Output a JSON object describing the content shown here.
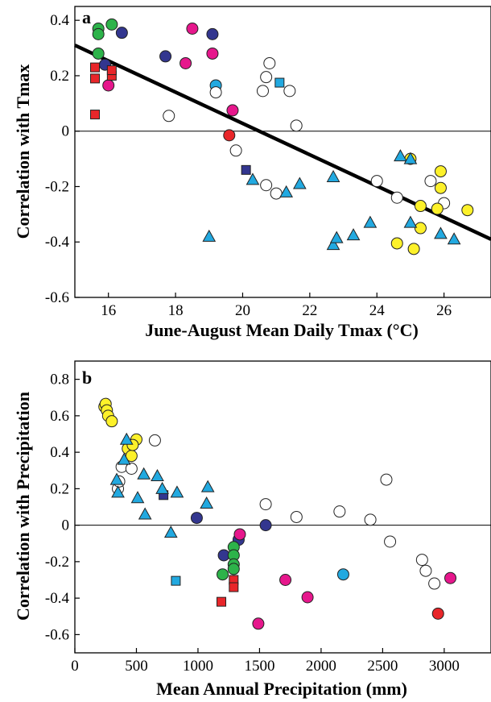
{
  "chart_data": [
    {
      "type": "scatter",
      "panel_label": "a",
      "xlabel": "June-August Mean Daily Tmax (°C)",
      "ylabel": "Correlation with Tmax",
      "xlim": [
        15,
        27.4
      ],
      "ylim": [
        -0.6,
        0.45
      ],
      "xticks": [
        16,
        18,
        20,
        22,
        24,
        26
      ],
      "yticks": [
        -0.6,
        -0.4,
        -0.2,
        0,
        0.2,
        0.4
      ],
      "zero_line": true,
      "grid": false,
      "regression_line": {
        "x": [
          15,
          27.4
        ],
        "y": [
          0.31,
          -0.39
        ]
      },
      "colors": {
        "green": "#2db34a",
        "navy": "#33368f",
        "magenta": "#e6178c",
        "red": "#e8262a",
        "cyan": "#22a9e0",
        "yellow": "#fdf12a",
        "white": "#ffffff"
      },
      "series": [
        {
          "marker": "circle",
          "color": "green",
          "points": [
            [
              15.7,
              0.37
            ],
            [
              15.7,
              0.35
            ],
            [
              15.7,
              0.28
            ],
            [
              16.1,
              0.385
            ]
          ]
        },
        {
          "marker": "circle",
          "color": "navy",
          "points": [
            [
              15.9,
              0.24
            ],
            [
              16.4,
              0.355
            ],
            [
              17.7,
              0.27
            ],
            [
              19.1,
              0.35
            ]
          ]
        },
        {
          "marker": "circle",
          "color": "magenta",
          "points": [
            [
              16.0,
              0.165
            ],
            [
              18.3,
              0.245
            ],
            [
              18.5,
              0.37
            ],
            [
              19.1,
              0.28
            ],
            [
              19.7,
              0.075
            ]
          ]
        },
        {
          "marker": "circle",
          "color": "red",
          "points": [
            [
              19.6,
              -0.015
            ]
          ]
        },
        {
          "marker": "circle",
          "color": "cyan",
          "points": [
            [
              19.2,
              0.165
            ]
          ]
        },
        {
          "marker": "circle",
          "color": "white",
          "points": [
            [
              17.8,
              0.055
            ],
            [
              19.2,
              0.14
            ],
            [
              19.8,
              -0.07
            ],
            [
              20.6,
              0.145
            ],
            [
              20.7,
              0.195
            ],
            [
              20.8,
              0.245
            ],
            [
              20.7,
              -0.195
            ],
            [
              21.0,
              -0.225
            ],
            [
              21.4,
              0.145
            ],
            [
              21.6,
              0.02
            ],
            [
              24.0,
              -0.18
            ],
            [
              24.6,
              -0.24
            ],
            [
              25.6,
              -0.18
            ],
            [
              26.0,
              -0.26
            ]
          ]
        },
        {
          "marker": "circle",
          "color": "yellow",
          "points": [
            [
              24.6,
              -0.405
            ],
            [
              25.0,
              -0.1
            ],
            [
              25.1,
              -0.425
            ],
            [
              25.3,
              -0.35
            ],
            [
              25.3,
              -0.27
            ],
            [
              25.8,
              -0.28
            ],
            [
              25.9,
              -0.145
            ],
            [
              25.9,
              -0.205
            ],
            [
              26.7,
              -0.285
            ]
          ]
        },
        {
          "marker": "square",
          "color": "red",
          "points": [
            [
              15.6,
              0.23
            ],
            [
              15.6,
              0.19
            ],
            [
              15.6,
              0.06
            ],
            [
              16.1,
              0.2
            ],
            [
              16.1,
              0.22
            ]
          ]
        },
        {
          "marker": "square",
          "color": "cyan",
          "points": [
            [
              21.1,
              0.175
            ]
          ]
        },
        {
          "marker": "square",
          "color": "navy",
          "points": [
            [
              20.1,
              -0.14
            ]
          ]
        },
        {
          "marker": "triangle",
          "color": "cyan",
          "points": [
            [
              19.0,
              -0.38
            ],
            [
              20.3,
              -0.175
            ],
            [
              21.3,
              -0.22
            ],
            [
              21.7,
              -0.19
            ],
            [
              22.7,
              -0.165
            ],
            [
              22.7,
              -0.41
            ],
            [
              22.8,
              -0.385
            ],
            [
              23.3,
              -0.375
            ],
            [
              23.8,
              -0.33
            ],
            [
              24.7,
              -0.09
            ],
            [
              25.0,
              -0.1
            ],
            [
              25.0,
              -0.33
            ],
            [
              25.9,
              -0.37
            ],
            [
              26.3,
              -0.39
            ]
          ]
        }
      ]
    },
    {
      "type": "scatter",
      "panel_label": "b",
      "xlabel": "Mean Annual Precipitation (mm)",
      "ylabel": "Correlation with Precipitation",
      "xlim": [
        0,
        3380
      ],
      "ylim": [
        -0.7,
        0.9
      ],
      "xticks": [
        0,
        500,
        1000,
        1500,
        2000,
        2500,
        3000
      ],
      "yticks": [
        -0.6,
        -0.4,
        -0.2,
        0,
        0.2,
        0.4,
        0.6,
        0.8
      ],
      "zero_line": true,
      "grid": false,
      "series": [
        {
          "marker": "circle",
          "color": "yellow",
          "points": [
            [
              240,
              0.65
            ],
            [
              250,
              0.665
            ],
            [
              260,
              0.63
            ],
            [
              270,
              0.6
            ],
            [
              300,
              0.57
            ],
            [
              430,
              0.42
            ],
            [
              460,
              0.38
            ],
            [
              500,
              0.47
            ],
            [
              470,
              0.44
            ]
          ]
        },
        {
          "marker": "circle",
          "color": "white",
          "points": [
            [
              350,
              0.2
            ],
            [
              360,
              0.24
            ],
            [
              380,
              0.32
            ],
            [
              460,
              0.31
            ],
            [
              650,
              0.465
            ],
            [
              1550,
              0.115
            ],
            [
              1800,
              0.045
            ],
            [
              2150,
              0.075
            ],
            [
              2400,
              0.03
            ],
            [
              2530,
              0.25
            ],
            [
              2560,
              -0.09
            ],
            [
              2820,
              -0.19
            ],
            [
              2850,
              -0.25
            ],
            [
              2920,
              -0.32
            ]
          ]
        },
        {
          "marker": "circle",
          "color": "navy",
          "points": [
            [
              990,
              0.04
            ],
            [
              1210,
              -0.165
            ],
            [
              1330,
              -0.08
            ],
            [
              1550,
              0.0
            ]
          ]
        },
        {
          "marker": "circle",
          "color": "green",
          "points": [
            [
              1200,
              -0.27
            ],
            [
              1290,
              -0.12
            ],
            [
              1290,
              -0.165
            ],
            [
              1290,
              -0.215
            ],
            [
              1290,
              -0.24
            ]
          ]
        },
        {
          "marker": "circle",
          "color": "magenta",
          "points": [
            [
              1340,
              -0.05
            ],
            [
              1490,
              -0.54
            ],
            [
              1710,
              -0.3
            ],
            [
              1890,
              -0.395
            ],
            [
              3050,
              -0.29
            ]
          ]
        },
        {
          "marker": "circle",
          "color": "cyan",
          "points": [
            [
              2180,
              -0.27
            ]
          ]
        },
        {
          "marker": "circle",
          "color": "red",
          "points": [
            [
              2950,
              -0.485
            ]
          ]
        },
        {
          "marker": "square",
          "color": "navy",
          "points": [
            [
              720,
              0.165
            ]
          ]
        },
        {
          "marker": "square",
          "color": "cyan",
          "points": [
            [
              820,
              -0.305
            ]
          ]
        },
        {
          "marker": "square",
          "color": "red",
          "points": [
            [
              1190,
              -0.42
            ],
            [
              1290,
              -0.3
            ],
            [
              1290,
              -0.34
            ]
          ]
        },
        {
          "marker": "triangle",
          "color": "cyan",
          "points": [
            [
              340,
              0.25
            ],
            [
              350,
              0.18
            ],
            [
              400,
              0.36
            ],
            [
              420,
              0.47
            ],
            [
              510,
              0.15
            ],
            [
              560,
              0.28
            ],
            [
              570,
              0.06
            ],
            [
              670,
              0.27
            ],
            [
              710,
              0.2
            ],
            [
              780,
              -0.04
            ],
            [
              830,
              0.18
            ],
            [
              1070,
              0.12
            ],
            [
              1080,
              0.21
            ]
          ]
        }
      ]
    }
  ]
}
